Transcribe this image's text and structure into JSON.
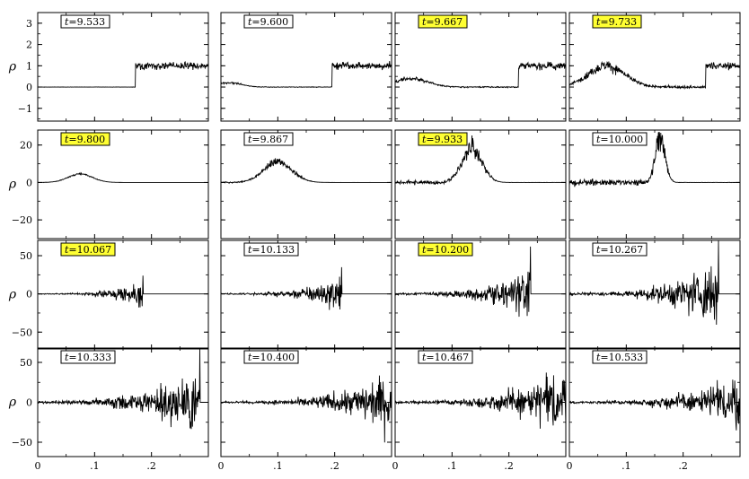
{
  "figure": {
    "rows": 4,
    "cols": 4,
    "highlight_color": "#ffff33",
    "line_color": "#000000",
    "ylabel": "ρ",
    "x_ticks": [
      "0",
      ".1",
      ".2"
    ],
    "x_tick_values": [
      0,
      0.1,
      0.2
    ],
    "row_ylims": [
      [
        -1.6,
        3.5
      ],
      [
        -30,
        28
      ],
      [
        -72,
        70
      ],
      [
        -68,
        68
      ]
    ],
    "row_yticks": [
      {
        "values": [
          -1,
          0,
          1,
          2,
          3
        ],
        "labels": [
          "−1",
          "0",
          "1",
          "2",
          "3"
        ]
      },
      {
        "values": [
          -20,
          0,
          20
        ],
        "labels": [
          "−20",
          "0",
          "20"
        ]
      },
      {
        "values": [
          -50,
          0,
          50
        ],
        "labels": [
          "−50",
          "0",
          "50"
        ]
      },
      {
        "values": [
          -50,
          0,
          50
        ],
        "labels": [
          "−50",
          "0",
          "50"
        ]
      }
    ]
  },
  "chart_data": [
    {
      "type": "line",
      "time_label": "9.533",
      "highlighted": false,
      "xlim": [
        0,
        0.3
      ],
      "ylim": [
        -1.6,
        3.5
      ],
      "front_x": 0.172,
      "post_level": 1.0,
      "post_noise": 0.12,
      "wave_center": null,
      "wave_amp": 0,
      "wave_width": 0,
      "noise_amp": 0.015,
      "spike": null
    },
    {
      "type": "line",
      "time_label": "9.600",
      "highlighted": false,
      "xlim": [
        0,
        0.3
      ],
      "ylim": [
        -1.6,
        3.5
      ],
      "front_x": 0.195,
      "post_level": 1.0,
      "post_noise": 0.12,
      "wave_center": 0.015,
      "wave_amp": 0.2,
      "wave_width": 0.03,
      "noise_amp": 0.04,
      "spike": null
    },
    {
      "type": "line",
      "time_label": "9.667",
      "highlighted": true,
      "xlim": [
        0,
        0.3
      ],
      "ylim": [
        -1.6,
        3.5
      ],
      "front_x": 0.217,
      "post_level": 1.0,
      "post_noise": 0.12,
      "wave_center": 0.03,
      "wave_amp": 0.4,
      "wave_width": 0.04,
      "noise_amp": 0.08,
      "spike": null
    },
    {
      "type": "line",
      "time_label": "9.733",
      "highlighted": true,
      "xlim": [
        0,
        0.3
      ],
      "ylim": [
        -1.6,
        3.5
      ],
      "front_x": 0.24,
      "post_level": 1.0,
      "post_noise": 0.12,
      "wave_center": 0.065,
      "wave_amp": 1.0,
      "wave_width": 0.045,
      "noise_amp": 0.18,
      "spike": null
    },
    {
      "type": "line",
      "time_label": "9.800",
      "highlighted": true,
      "xlim": [
        0,
        0.3
      ],
      "ylim": [
        -30,
        28
      ],
      "front_x": null,
      "post_level": 0,
      "post_noise": 0,
      "wave_center": 0.075,
      "wave_amp": 4.5,
      "wave_width": 0.03,
      "noise_amp": 0.4,
      "spike": null
    },
    {
      "type": "line",
      "time_label": "9.867",
      "highlighted": false,
      "xlim": [
        0,
        0.3
      ],
      "ylim": [
        -30,
        28
      ],
      "front_x": null,
      "post_level": 0,
      "post_noise": 0,
      "wave_center": 0.1,
      "wave_amp": 11,
      "wave_width": 0.035,
      "noise_amp": 1.5,
      "spike": null
    },
    {
      "type": "line",
      "time_label": "9.933",
      "highlighted": true,
      "xlim": [
        0,
        0.3
      ],
      "ylim": [
        -30,
        28
      ],
      "front_x": null,
      "post_level": 0,
      "post_noise": 0,
      "wave_center": 0.135,
      "wave_amp": 18,
      "wave_width": 0.025,
      "noise_amp": 3.5,
      "spike": null
    },
    {
      "type": "line",
      "time_label": "10.000",
      "highlighted": false,
      "xlim": [
        0,
        0.3
      ],
      "ylim": [
        -30,
        28
      ],
      "front_x": null,
      "post_level": 0,
      "post_noise": 0,
      "wave_center": 0.16,
      "wave_amp": 25,
      "wave_width": 0.012,
      "noise_amp": 5.5,
      "spike": null
    },
    {
      "type": "line",
      "time_label": "10.067",
      "highlighted": true,
      "xlim": [
        0,
        0.3
      ],
      "ylim": [
        -72,
        70
      ],
      "front_x": null,
      "post_level": 0,
      "post_noise": 0,
      "wave_center": null,
      "wave_amp": 0,
      "wave_width": 0,
      "noise_amp": 0,
      "burst": {
        "start": 0.0,
        "end": 0.185,
        "amp": 18
      },
      "spike": {
        "x": 0.185,
        "y": 24
      }
    },
    {
      "type": "line",
      "time_label": "10.133",
      "highlighted": false,
      "xlim": [
        0,
        0.3
      ],
      "ylim": [
        -72,
        70
      ],
      "front_x": null,
      "post_level": 0,
      "post_noise": 0,
      "wave_center": null,
      "wave_amp": 0,
      "wave_width": 0,
      "noise_amp": 0,
      "burst": {
        "start": 0.0,
        "end": 0.212,
        "amp": 28
      },
      "spike": {
        "x": 0.212,
        "y": 35
      }
    },
    {
      "type": "line",
      "time_label": "10.200",
      "highlighted": true,
      "xlim": [
        0,
        0.3
      ],
      "ylim": [
        -72,
        70
      ],
      "front_x": null,
      "post_level": 0,
      "post_noise": 0,
      "wave_center": null,
      "wave_amp": 0,
      "wave_width": 0,
      "noise_amp": 0,
      "burst": {
        "start": 0.0,
        "end": 0.238,
        "amp": 42
      },
      "spike": {
        "x": 0.238,
        "y": 62
      }
    },
    {
      "type": "line",
      "time_label": "10.267",
      "highlighted": false,
      "xlim": [
        0,
        0.3
      ],
      "ylim": [
        -72,
        70
      ],
      "front_x": null,
      "post_level": 0,
      "post_noise": 0,
      "wave_center": null,
      "wave_amp": 0,
      "wave_width": 0,
      "noise_amp": 0,
      "burst": {
        "start": 0.0,
        "end": 0.262,
        "amp": 55
      },
      "spike": {
        "x": 0.262,
        "y": 70
      }
    },
    {
      "type": "line",
      "time_label": "10.333",
      "highlighted": false,
      "xlim": [
        0,
        0.3
      ],
      "ylim": [
        -68,
        68
      ],
      "front_x": null,
      "post_level": 0,
      "post_noise": 0,
      "wave_center": null,
      "wave_amp": 0,
      "wave_width": 0,
      "noise_amp": 0,
      "burst": {
        "start": 0.0,
        "end": 0.285,
        "amp": 58
      },
      "spike": {
        "x": 0.285,
        "y": 68
      }
    },
    {
      "type": "line",
      "time_label": "10.400",
      "highlighted": false,
      "xlim": [
        0,
        0.3
      ],
      "ylim": [
        -68,
        68
      ],
      "front_x": null,
      "post_level": 0,
      "post_noise": 0,
      "wave_center": null,
      "wave_amp": 0,
      "wave_width": 0,
      "noise_amp": 0,
      "burst": {
        "start": 0.0,
        "end": 0.3,
        "amp": 45
      },
      "spike": null
    },
    {
      "type": "line",
      "time_label": "10.467",
      "highlighted": false,
      "xlim": [
        0,
        0.3
      ],
      "ylim": [
        -68,
        68
      ],
      "front_x": null,
      "post_level": 0,
      "post_noise": 0,
      "wave_center": null,
      "wave_amp": 0,
      "wave_width": 0,
      "noise_amp": 0,
      "burst": {
        "start": 0.0,
        "end": 0.3,
        "amp": 52
      },
      "spike": null
    },
    {
      "type": "line",
      "time_label": "10.533",
      "highlighted": false,
      "xlim": [
        0,
        0.3
      ],
      "ylim": [
        -68,
        68
      ],
      "front_x": null,
      "post_level": 0,
      "post_noise": 0,
      "wave_center": null,
      "wave_amp": 0,
      "wave_width": 0,
      "noise_amp": 0,
      "burst": {
        "start": 0.0,
        "end": 0.3,
        "amp": 42
      },
      "spike": null
    }
  ]
}
